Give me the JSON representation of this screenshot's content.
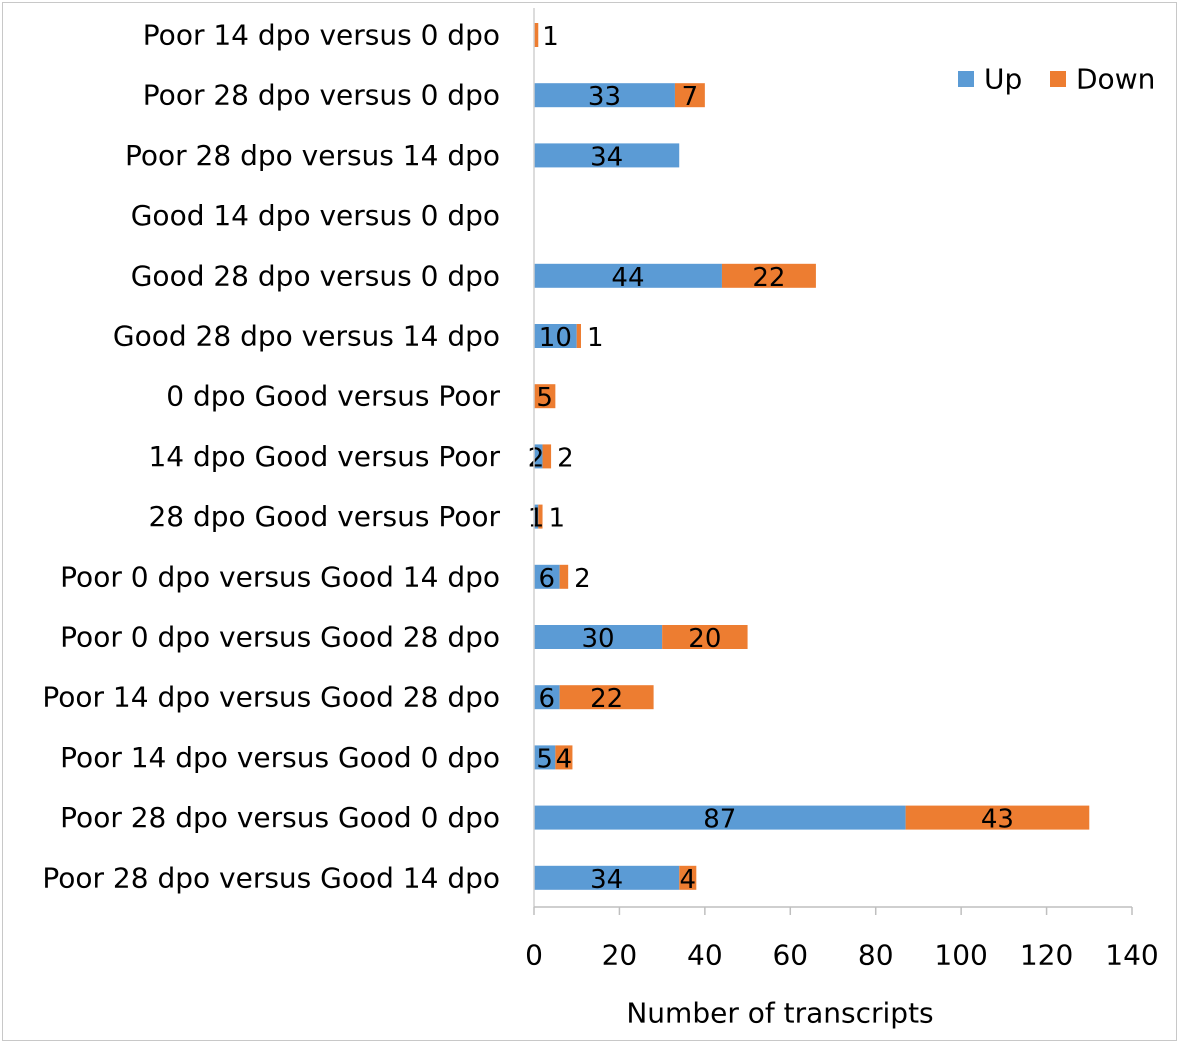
{
  "chart_data": {
    "type": "bar",
    "orientation": "horizontal",
    "stacked": true,
    "categories": [
      "Poor 14 dpo  versus 0 dpo",
      "Poor 28 dpo  versus 0 dpo",
      "Poor 28 dpo  versus 14 dpo",
      "Good 14 dpo  versus 0 dpo",
      "Good 28 dpo  versus 0 dpo",
      "Good 28 dpo  versus 14 dpo",
      "0 dpo Good  versus Poor",
      "14 dpo Good  versus Poor",
      "28 dpo Good versus Poor",
      "Poor 0 dpo versus Good 14 dpo",
      "Poor 0 dpo versus Good 28 dpo",
      "Poor 14 dpo versus Good 28 dpo",
      "Poor 14 dpo versus Good 0 dpo",
      "Poor 28 dpo versus Good 0 dpo",
      "Poor 28 dpo versus Good 14 dpo"
    ],
    "series": [
      {
        "name": "Up",
        "color": "#5B9BD5",
        "values": [
          0,
          33,
          34,
          0,
          44,
          10,
          0,
          2,
          1,
          6,
          30,
          6,
          5,
          87,
          34
        ],
        "labels": [
          "",
          "33",
          "34",
          "",
          "44",
          "10",
          "",
          "2",
          "1",
          "6",
          "30",
          "6",
          "5",
          "87",
          "34"
        ]
      },
      {
        "name": "Down",
        "color": "#ED7D31",
        "values": [
          1,
          7,
          0,
          0,
          22,
          1,
          5,
          2,
          1,
          2,
          20,
          22,
          4,
          43,
          4
        ],
        "labels": [
          "1",
          "7",
          "",
          "",
          "22",
          "1",
          "5",
          "2",
          "1",
          "2",
          "20",
          "22",
          "4",
          "43",
          "4"
        ]
      }
    ],
    "xlabel": "Number of transcripts",
    "xlim": [
      0,
      140
    ],
    "xticks": [
      "0",
      "20",
      "40",
      "60",
      "80",
      "100",
      "120",
      "140"
    ],
    "grid": false,
    "legend": "top-right"
  }
}
